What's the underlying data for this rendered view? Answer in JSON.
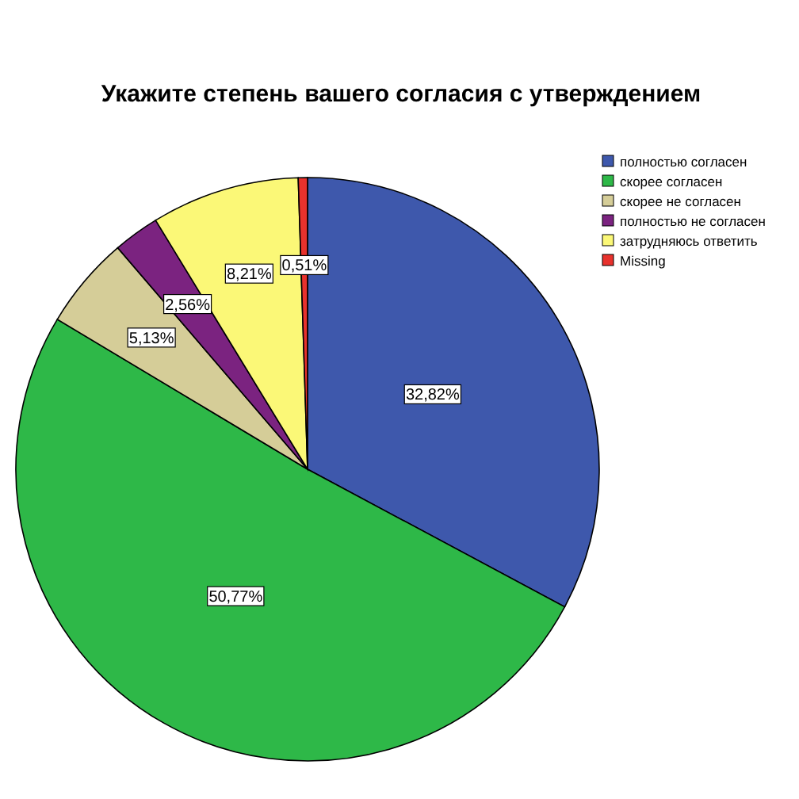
{
  "chart_data": {
    "type": "pie",
    "title": "Укажите степень вашего согласия с утверждением",
    "categories": [
      "полностью согласен",
      "скорее согласен",
      "скорее не согласен",
      "полностью не согласен",
      "затрудняюсь ответить",
      "Missing"
    ],
    "values": [
      32.82,
      50.77,
      5.13,
      2.56,
      8.21,
      0.51
    ],
    "colors": [
      "#3e58ac",
      "#2eb848",
      "#d5cd98",
      "#7b2380",
      "#fbf877",
      "#e8322d"
    ],
    "value_labels": [
      "32,82%",
      "50,77%",
      "5,13%",
      "2,56%",
      "8,21%",
      "0,51%"
    ],
    "legend": "top right"
  }
}
